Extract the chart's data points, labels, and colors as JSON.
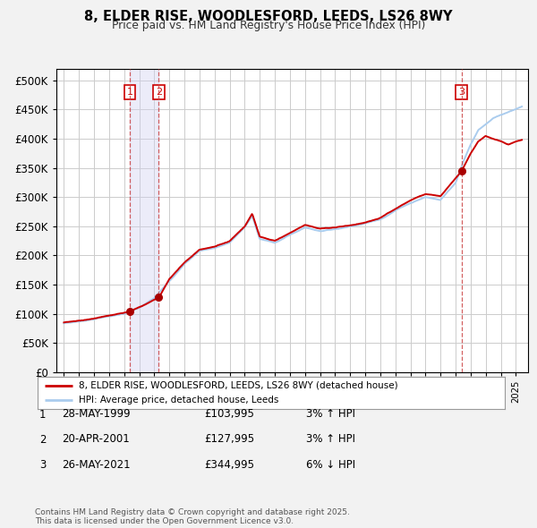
{
  "title": "8, ELDER RISE, WOODLESFORD, LEEDS, LS26 8WY",
  "subtitle": "Price paid vs. HM Land Registry's House Price Index (HPI)",
  "legend_line1": "8, ELDER RISE, WOODLESFORD, LEEDS, LS26 8WY (detached house)",
  "legend_line2": "HPI: Average price, detached house, Leeds",
  "red_color": "#cc0000",
  "blue_color": "#99ccff",
  "background_color": "#f2f2f2",
  "plot_bg_color": "#ffffff",
  "grid_color": "#cccccc",
  "transactions": [
    {
      "num": 1,
      "date": "28-MAY-1999",
      "price": "£103,995",
      "pct": "3%",
      "dir": "↑",
      "year": 1999.38
    },
    {
      "num": 2,
      "date": "20-APR-2001",
      "price": "£127,995",
      "pct": "3%",
      "dir": "↑",
      "year": 2001.3
    },
    {
      "num": 3,
      "date": "26-MAY-2021",
      "price": "£344,995",
      "pct": "6%",
      "dir": "↓",
      "year": 2021.4
    }
  ],
  "footer": "Contains HM Land Registry data © Crown copyright and database right 2025.\nThis data is licensed under the Open Government Licence v3.0.",
  "ylim": [
    0,
    520000
  ],
  "yticks": [
    0,
    50000,
    100000,
    150000,
    200000,
    250000,
    300000,
    350000,
    400000,
    450000,
    500000
  ],
  "xlim_start": 1994.5,
  "xlim_end": 2025.8,
  "sale_prices": [
    103995,
    127995,
    344995
  ],
  "sale_years": [
    1999.38,
    2001.3,
    2021.4
  ],
  "hpi_anchors_x": [
    1995,
    1996,
    1997,
    1998,
    1999,
    2000,
    2001,
    2002,
    2003,
    2004,
    2005,
    2006,
    2007,
    2007.5,
    2008,
    2009,
    2010,
    2011,
    2012,
    2013,
    2014,
    2015,
    2016,
    2017,
    2018,
    2019,
    2020,
    2021,
    2021.5,
    2022,
    2022.5,
    2023,
    2023.5,
    2024,
    2024.5,
    2025,
    2025.4
  ],
  "hpi_anchors_y": [
    84000,
    87000,
    91000,
    96000,
    100000,
    110000,
    127000,
    157000,
    185000,
    208000,
    213000,
    222000,
    248000,
    268000,
    228000,
    222000,
    235000,
    248000,
    242000,
    245000,
    250000,
    255000,
    262000,
    277000,
    290000,
    300000,
    295000,
    325000,
    360000,
    390000,
    415000,
    425000,
    435000,
    440000,
    445000,
    450000,
    455000
  ],
  "prop_anchors_x": [
    1995,
    1996,
    1997,
    1998,
    1999.38,
    2001.3,
    2002,
    2003,
    2004,
    2005,
    2006,
    2007,
    2007.5,
    2008,
    2009,
    2010,
    2011,
    2012,
    2013,
    2014,
    2015,
    2016,
    2017,
    2018,
    2019,
    2020,
    2021.4,
    2022,
    2022.5,
    2023,
    2024,
    2024.5,
    2025,
    2025.4
  ],
  "prop_anchors_y": [
    85000,
    88000,
    92000,
    97000,
    103995,
    127995,
    160000,
    188000,
    210000,
    215000,
    225000,
    250000,
    272000,
    232000,
    225000,
    238000,
    252000,
    246000,
    248000,
    252000,
    256000,
    264000,
    280000,
    295000,
    305000,
    302000,
    344995,
    375000,
    395000,
    405000,
    395000,
    390000,
    395000,
    398000
  ]
}
